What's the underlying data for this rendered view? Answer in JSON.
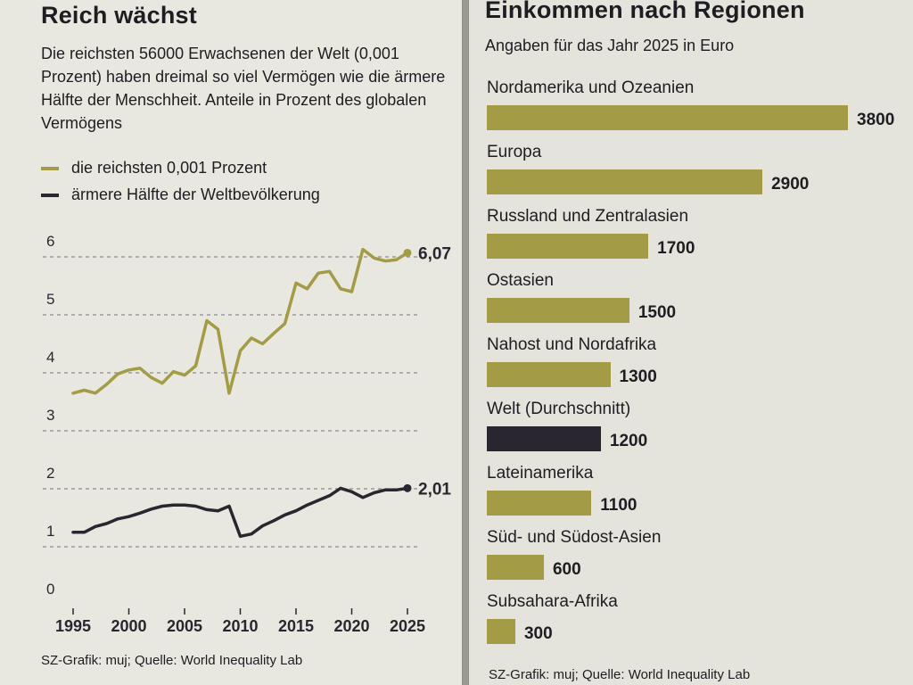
{
  "left": {
    "title": "Reich wächst",
    "subtitle": "Die reichsten 56000 Erwachsenen der Welt (0,001 Prozent) haben dreimal so viel Vermögen wie die ärmere Hälfte der Menschheit. Anteile in Prozent des globalen Vermögens",
    "source": "SZ-Grafik: muj; Quelle: World Inequality Lab"
  },
  "right": {
    "title": "Einkommen nach Regionen",
    "subtitle": "Angaben für das Jahr 2025 in Euro",
    "source": "SZ-Grafik: muj; Quelle: World Inequality Lab"
  },
  "colors": {
    "olive": "#a39b45",
    "dark": "#2a2630",
    "grid": "#8a8a90"
  },
  "chart_data": [
    {
      "type": "line",
      "title": "Reich wächst",
      "xlabel": "",
      "ylabel": "",
      "xlim": [
        1995,
        2025
      ],
      "ylim": [
        0,
        6
      ],
      "x_ticks": [
        1995,
        2000,
        2005,
        2010,
        2015,
        2020,
        2025
      ],
      "y_ticks": [
        0,
        1,
        2,
        3,
        4,
        5,
        6
      ],
      "grid": true,
      "legend": "top-left",
      "x": [
        1995,
        1996,
        1997,
        1998,
        1999,
        2000,
        2001,
        2002,
        2003,
        2004,
        2005,
        2006,
        2007,
        2008,
        2009,
        2010,
        2011,
        2012,
        2013,
        2014,
        2015,
        2016,
        2017,
        2018,
        2019,
        2020,
        2021,
        2022,
        2023,
        2024,
        2025
      ],
      "series": [
        {
          "name": "die reichsten 0,001 Prozent",
          "color": "#a39b45",
          "end_label": "6,07",
          "values": [
            3.65,
            3.7,
            3.65,
            3.8,
            3.98,
            4.05,
            4.08,
            3.92,
            3.82,
            4.02,
            3.96,
            4.12,
            4.9,
            4.75,
            3.65,
            4.38,
            4.6,
            4.5,
            4.68,
            4.85,
            5.55,
            5.45,
            5.72,
            5.75,
            5.45,
            5.4,
            6.13,
            5.98,
            5.93,
            5.95,
            6.07
          ]
        },
        {
          "name": "ärmere Hälfte der Weltbevölkerung",
          "color": "#2a2630",
          "end_label": "2,01",
          "values": [
            1.25,
            1.25,
            1.35,
            1.4,
            1.48,
            1.52,
            1.58,
            1.65,
            1.7,
            1.72,
            1.72,
            1.7,
            1.64,
            1.62,
            1.7,
            1.18,
            1.22,
            1.36,
            1.45,
            1.55,
            1.62,
            1.72,
            1.8,
            1.88,
            2.01,
            1.95,
            1.85,
            1.93,
            1.98,
            1.98,
            2.01
          ]
        }
      ]
    },
    {
      "type": "bar",
      "orientation": "horizontal",
      "title": "Einkommen nach Regionen",
      "subtitle": "Angaben für das Jahr 2025 in Euro",
      "xlim": [
        0,
        3800
      ],
      "grid": false,
      "categories": [
        "Nordamerika und Ozeanien",
        "Europa",
        "Russland und Zentralasien",
        "Ostasien",
        "Nahost und Nordafrika",
        "Welt (Durchschnitt)",
        "Lateinamerika",
        "Süd- und Südost-Asien",
        "Subsahara-Afrika"
      ],
      "values": [
        3800,
        2900,
        1700,
        1500,
        1300,
        1200,
        1100,
        600,
        300
      ],
      "value_labels": [
        "3800",
        "2900",
        "1700",
        "1500",
        "1300",
        "1200",
        "1100",
        "600",
        "300"
      ],
      "highlight": "Welt (Durchschnitt)"
    }
  ]
}
